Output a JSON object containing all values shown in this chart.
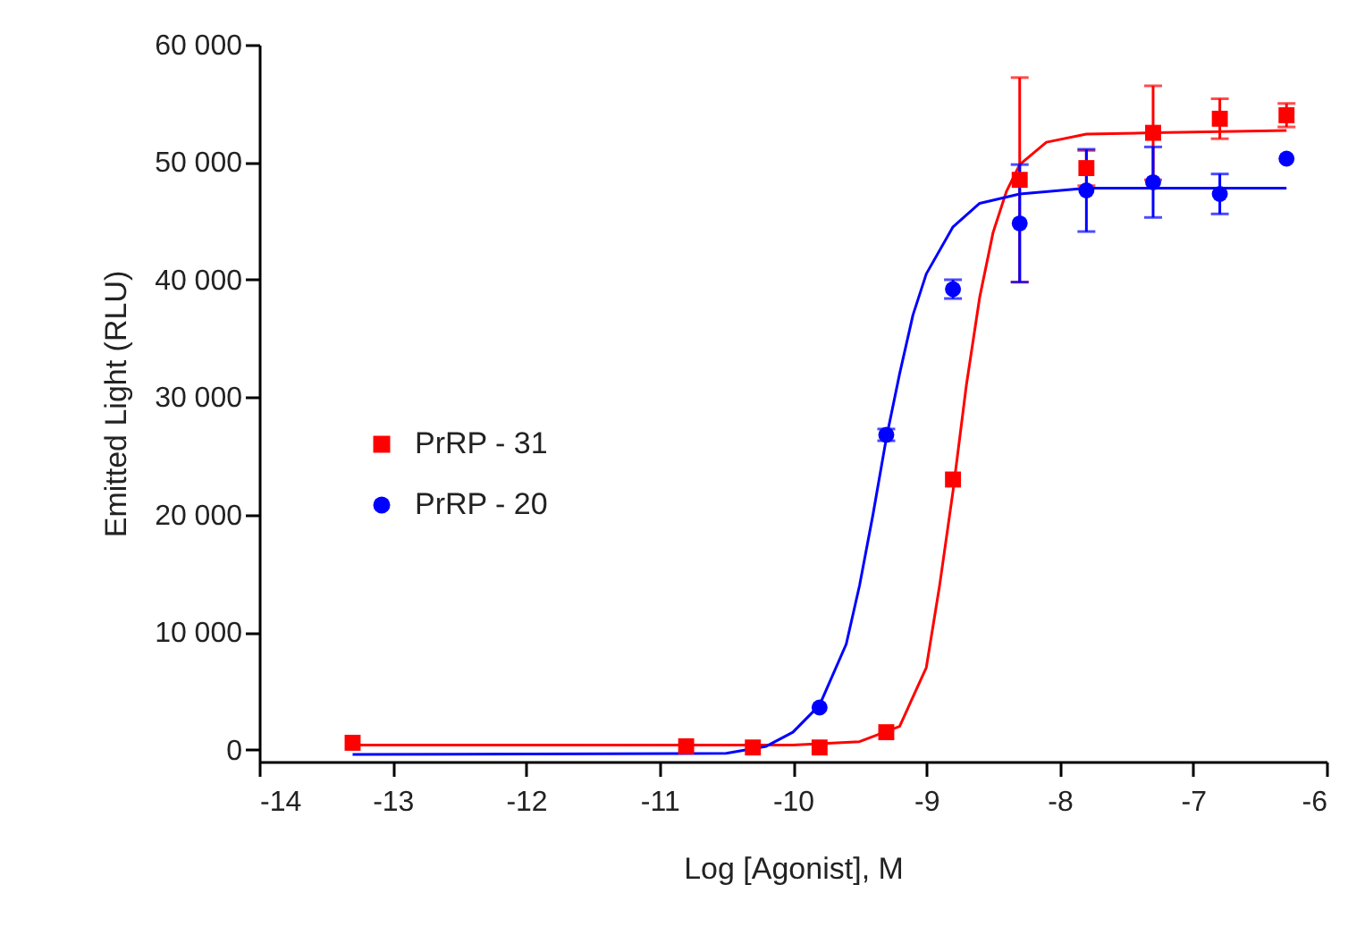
{
  "chart_data": {
    "type": "scatter",
    "xlabel": "Log [Agonist], M",
    "ylabel": "Emitted Light (RLU)",
    "xlim": [
      -14,
      -6
    ],
    "xticks": [
      -14,
      -13,
      -12,
      -11,
      -10,
      -9,
      -8,
      -7,
      -6
    ],
    "ylim": [
      -1000,
      60000
    ],
    "yticks": [
      {
        "value": 0,
        "label": "0"
      },
      {
        "value": 10000,
        "label": "10 000"
      },
      {
        "value": 20000,
        "label": "20 000"
      },
      {
        "value": 30000,
        "label": "30 000"
      },
      {
        "value": 40000,
        "label": "40 000"
      },
      {
        "value": 50000,
        "label": "50 000"
      },
      {
        "value": 60000,
        "label": "60 000"
      }
    ],
    "legend": "left",
    "series": [
      {
        "name": "PrRP - 31",
        "marker": "square",
        "color": "#ff0000",
        "x": [
          -13.3,
          -10.8,
          -10.3,
          -9.8,
          -9.3,
          -8.8,
          -8.3,
          -7.8,
          -7.3,
          -6.8,
          -6.3
        ],
        "values": [
          600,
          300,
          200,
          200,
          1500,
          23000,
          48500,
          49500,
          52500,
          53700,
          54000
        ],
        "errors": [
          null,
          null,
          null,
          null,
          null,
          null,
          8700,
          1500,
          4000,
          1700,
          1000
        ]
      },
      {
        "name": "PrRP - 20",
        "marker": "circle",
        "color": "#0000ff",
        "x": [
          -9.8,
          -9.3,
          -8.8,
          -8.3,
          -7.8,
          -7.3,
          -6.8,
          -6.3
        ],
        "values": [
          3600,
          26800,
          39200,
          44800,
          47600,
          48300,
          47300,
          50300
        ],
        "errors": [
          null,
          500,
          800,
          5000,
          3500,
          3000,
          1700,
          null
        ]
      },
      {
        "type": "line",
        "color": "#ff0000",
        "x": [
          -13.3,
          -10,
          -9.5,
          -9.2,
          -9,
          -8.9,
          -8.8,
          -8.7,
          -8.6,
          -8.5,
          -8.4,
          -8.3,
          -8.1,
          -7.8,
          -7.3,
          -6.3
        ],
        "values": [
          400,
          400,
          700,
          2000,
          7000,
          14000,
          22000,
          31000,
          38500,
          44000,
          47500,
          49800,
          51700,
          52400,
          52500,
          52700
        ]
      },
      {
        "type": "line",
        "color": "#0000ff",
        "x": [
          -13.3,
          -10.5,
          -10.2,
          -10,
          -9.8,
          -9.6,
          -9.5,
          -9.4,
          -9.3,
          -9.2,
          -9.1,
          -9,
          -8.8,
          -8.6,
          -8.3,
          -7.8,
          -6.3
        ],
        "values": [
          -400,
          -300,
          300,
          1500,
          3800,
          9000,
          14000,
          20000,
          26500,
          32000,
          37000,
          40500,
          44500,
          46500,
          47300,
          47800,
          47800
        ]
      }
    ]
  }
}
